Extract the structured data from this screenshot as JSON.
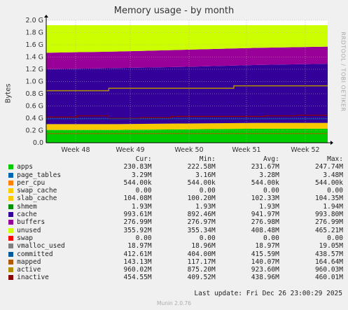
{
  "title": "Memory usage - by month",
  "ylabel": "Bytes",
  "vendor": "RRDTOOL / TOBI OETIKER",
  "footer": "Munin 2.0.76",
  "last_update": "Last update:  Fri Dec 26 23:00:29 2025",
  "legend_headers": {
    "cur": "Cur:",
    "min": "Min:",
    "avg": "Avg:",
    "max": "Max:"
  },
  "chart_data": {
    "type": "area",
    "title": "Memory usage - by month",
    "ylabel": "Bytes",
    "ylim": [
      0,
      2.0
    ],
    "y_unit": "G",
    "y_ticks": [
      "0.0",
      "0.2 G",
      "0.4 G",
      "0.6 G",
      "0.8 G",
      "1.0 G",
      "1.2 G",
      "1.4 G",
      "1.6 G",
      "1.8 G",
      "2.0 G"
    ],
    "x_ticks": [
      "Week 48",
      "Week 49",
      "Week 50",
      "Week 51",
      "Week 52"
    ],
    "grid": true,
    "stack_top_G": [
      {
        "week": "Week 48",
        "apps": 0.21,
        "cache_top": 1.2,
        "buffers_top": 1.47,
        "total": 1.92
      },
      {
        "week": "Week 49",
        "apps": 0.21,
        "cache_top": 1.22,
        "buffers_top": 1.49,
        "total": 1.92
      },
      {
        "week": "Week 50",
        "apps": 0.22,
        "cache_top": 1.24,
        "buffers_top": 1.52,
        "total": 1.92
      },
      {
        "week": "Week 51",
        "apps": 0.23,
        "cache_top": 1.27,
        "buffers_top": 1.55,
        "total": 1.92
      },
      {
        "week": "Week 52",
        "apps": 0.23,
        "cache_top": 1.29,
        "buffers_top": 1.57,
        "total": 1.92
      }
    ],
    "line_values_G": {
      "active": [
        0.85,
        0.85,
        0.89,
        0.89,
        0.89,
        0.89,
        0.93,
        0.93,
        0.93
      ],
      "inactive": [
        0.42,
        0.44,
        0.4,
        0.41,
        0.43,
        0.43,
        0.43,
        0.44,
        0.45
      ]
    },
    "series": [
      {
        "name": "apps",
        "color": "#00cc00",
        "cur": "230.83M",
        "min": "222.58M",
        "avg": "231.67M",
        "max": "247.74M"
      },
      {
        "name": "page_tables",
        "color": "#0066b3",
        "cur": "3.29M",
        "min": "3.16M",
        "avg": "3.28M",
        "max": "3.48M"
      },
      {
        "name": "per_cpu",
        "color": "#ff8000",
        "cur": "544.00k",
        "min": "544.00k",
        "avg": "544.00k",
        "max": "544.00k"
      },
      {
        "name": "swap_cache",
        "color": "#ffcc00",
        "cur": "0.00",
        "min": "0.00",
        "avg": "0.00",
        "max": "0.00"
      },
      {
        "name": "slab_cache",
        "color": "#f8c800",
        "cur": "104.08M",
        "min": "100.20M",
        "avg": "102.33M",
        "max": "104.35M"
      },
      {
        "name": "shmem",
        "color": "#008f00",
        "cur": "1.93M",
        "min": "1.93M",
        "avg": "1.93M",
        "max": "1.94M"
      },
      {
        "name": "cache",
        "color": "#330099",
        "cur": "993.61M",
        "min": "892.46M",
        "avg": "941.97M",
        "max": "993.80M"
      },
      {
        "name": "buffers",
        "color": "#990099",
        "cur": "276.99M",
        "min": "276.97M",
        "avg": "276.98M",
        "max": "276.99M"
      },
      {
        "name": "unused",
        "color": "#ccff00",
        "cur": "355.92M",
        "min": "355.34M",
        "avg": "408.48M",
        "max": "465.21M"
      },
      {
        "name": "swap",
        "color": "#ff0000",
        "cur": "0.00",
        "min": "0.00",
        "avg": "0.00",
        "max": "0.00"
      },
      {
        "name": "vmalloc_used",
        "color": "#808080",
        "cur": "18.97M",
        "min": "18.96M",
        "avg": "18.97M",
        "max": "19.05M"
      },
      {
        "name": "committed",
        "color": "#005a9c",
        "cur": "412.61M",
        "min": "404.00M",
        "avg": "415.59M",
        "max": "438.57M"
      },
      {
        "name": "mapped",
        "color": "#b35a00",
        "cur": "143.13M",
        "min": "117.17M",
        "avg": "140.07M",
        "max": "164.64M"
      },
      {
        "name": "active",
        "color": "#b38f00",
        "cur": "960.02M",
        "min": "875.20M",
        "avg": "923.60M",
        "max": "960.03M"
      },
      {
        "name": "inactive",
        "color": "#8b0000",
        "cur": "454.55M",
        "min": "409.52M",
        "avg": "438.96M",
        "max": "460.01M"
      }
    ]
  }
}
